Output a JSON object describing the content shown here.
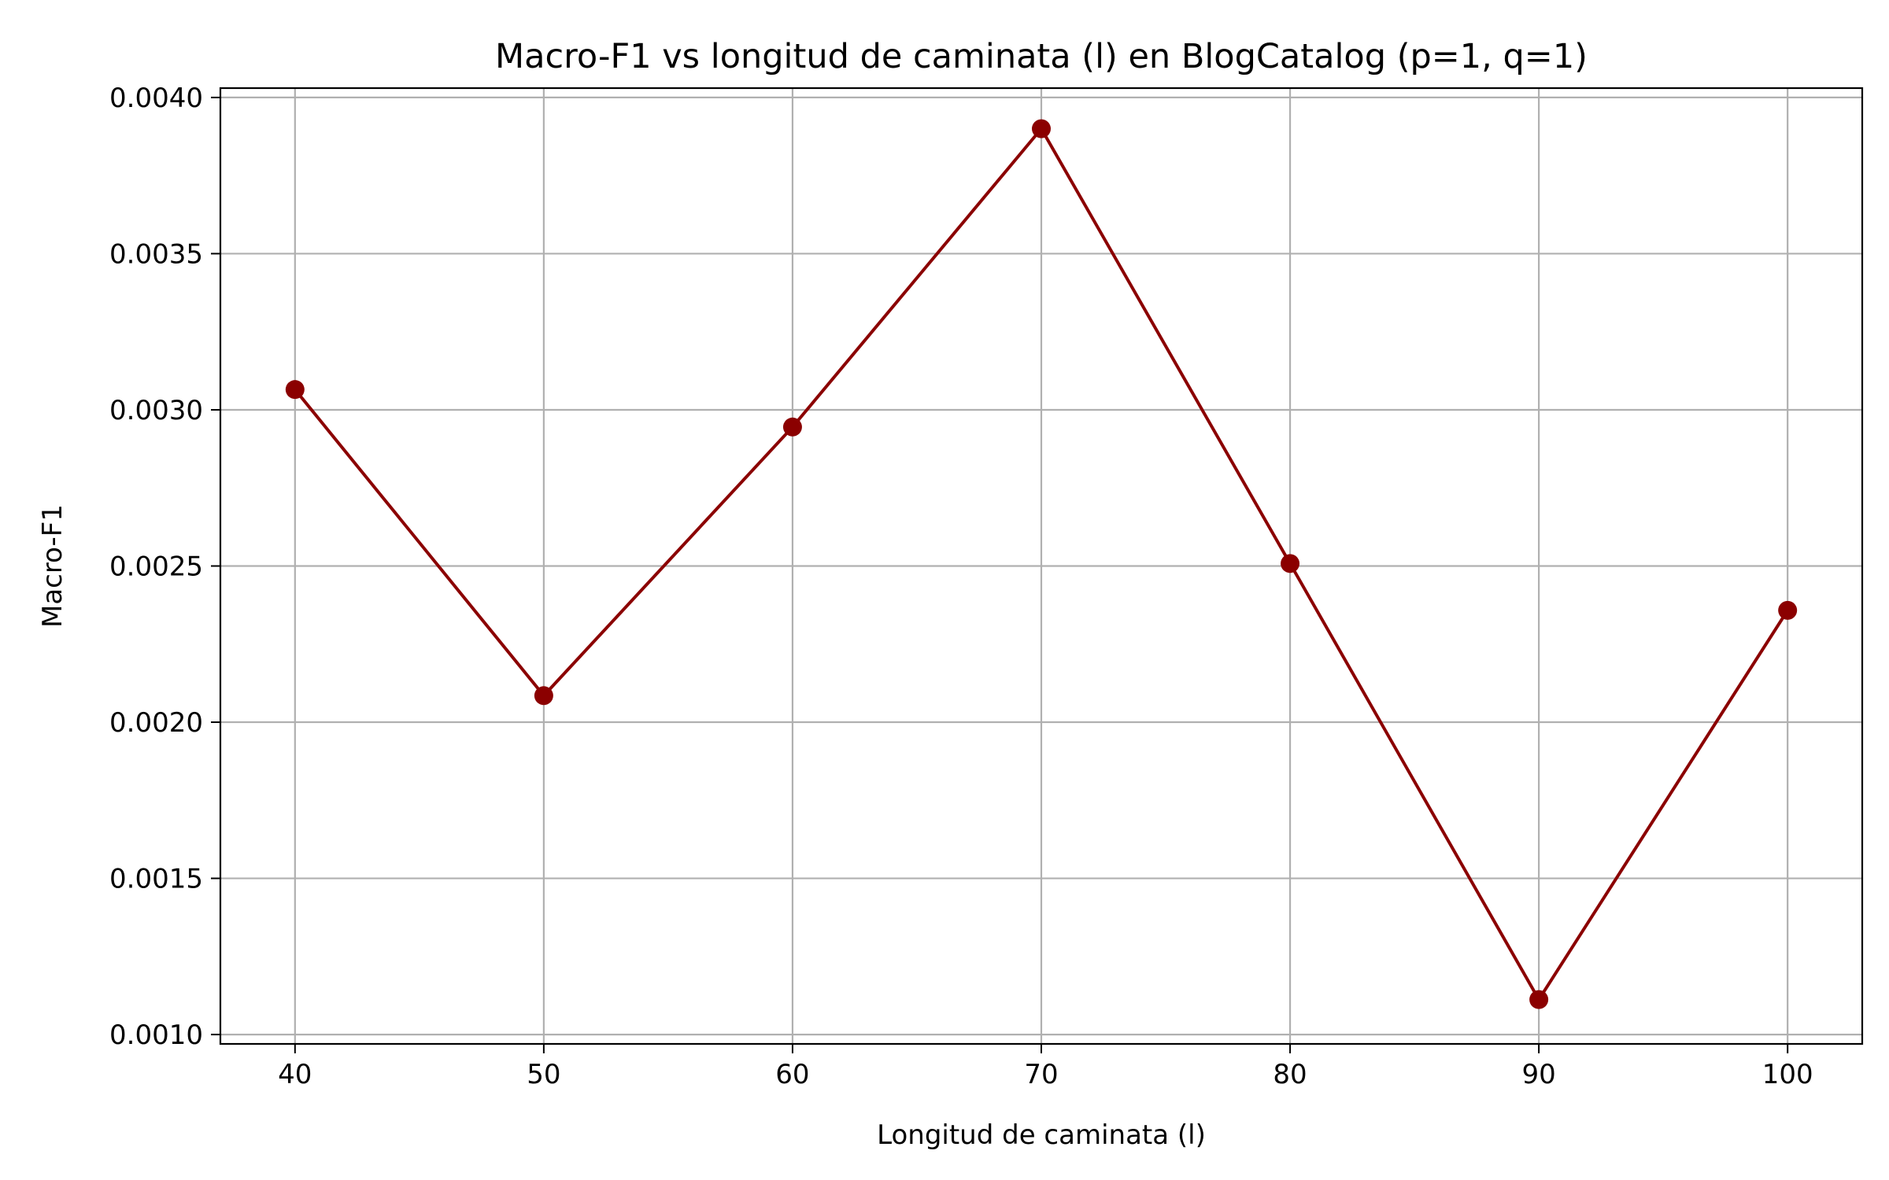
{
  "chart_data": {
    "type": "line",
    "title": "Macro-F1 vs longitud de caminata (l) en BlogCatalog (p=1, q=1)",
    "xlabel": "Longitud de caminata (l)",
    "ylabel": "Macro-F1",
    "x": [
      40,
      50,
      60,
      70,
      80,
      90,
      100
    ],
    "series": [
      {
        "values": [
          0.003065,
          0.002085,
          0.002945,
          0.0039,
          0.002508,
          0.001112,
          0.002358
        ],
        "color": "#8b0000",
        "marker": "circle"
      }
    ],
    "xlim": [
      37,
      103
    ],
    "ylim": [
      0.00097,
      0.00403
    ],
    "xticks": [
      40,
      50,
      60,
      70,
      80,
      90,
      100
    ],
    "xtick_labels": [
      "40",
      "50",
      "60",
      "70",
      "80",
      "90",
      "100"
    ],
    "yticks": [
      0.001,
      0.0015,
      0.002,
      0.0025,
      0.003,
      0.0035,
      0.004
    ],
    "ytick_labels": [
      "0.0010",
      "0.0015",
      "0.0020",
      "0.0025",
      "0.0030",
      "0.0035",
      "0.0040"
    ],
    "grid": true,
    "legend": "none"
  }
}
